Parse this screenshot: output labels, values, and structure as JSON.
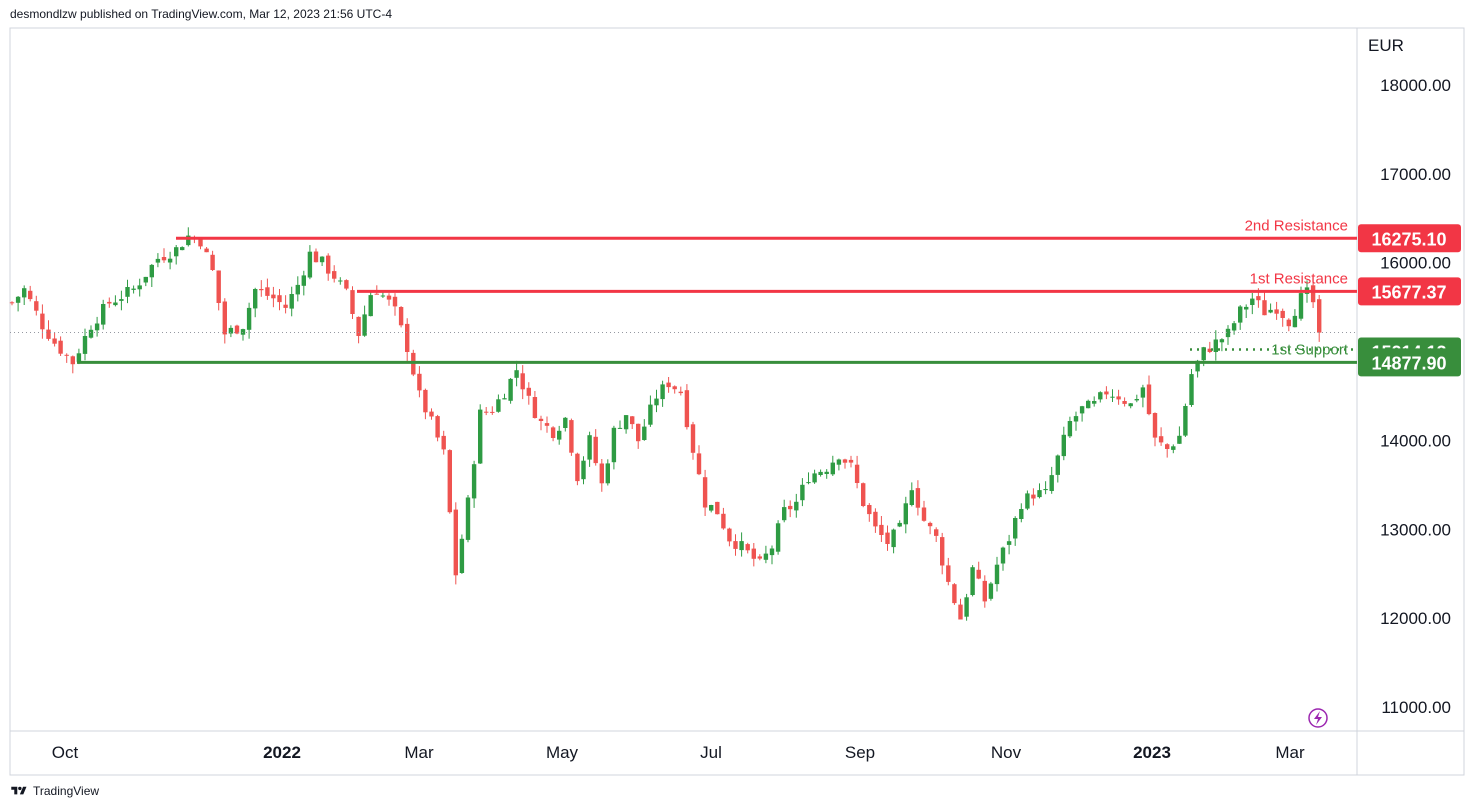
{
  "header": {
    "publisher": "desmondlzw published on TradingView.com, Mar 12, 2023 21:56 UTC-4"
  },
  "footer": {
    "brand": "TradingView"
  },
  "colors": {
    "up": "#26a69a",
    "up_fill": "#2e9b43",
    "down": "#ef5350",
    "resistance": "#f23645",
    "support": "#388e3c"
  },
  "chart_data": {
    "type": "candlestick",
    "currency": "EUR",
    "y_ticks": [
      "18000.00",
      "17000.00",
      "16000.00",
      "14000.00",
      "13000.00",
      "12000.00",
      "11000.00"
    ],
    "ylim": [
      10750,
      18600
    ],
    "x_ticks": [
      {
        "label": "Oct",
        "bold": false
      },
      {
        "label": "2022",
        "bold": true
      },
      {
        "label": "Mar",
        "bold": false
      },
      {
        "label": "May",
        "bold": false
      },
      {
        "label": "Jul",
        "bold": false
      },
      {
        "label": "Sep",
        "bold": false
      },
      {
        "label": "Nov",
        "bold": false
      },
      {
        "label": "2023",
        "bold": true
      },
      {
        "label": "Mar",
        "bold": false
      }
    ],
    "levels": [
      {
        "name": "2nd Resistance",
        "value": 16275.1,
        "badge": "16275.10",
        "kind": "resistance"
      },
      {
        "name": "1st Resistance",
        "value": 15677.37,
        "badge": "15677.37",
        "kind": "resistance"
      },
      {
        "name": "",
        "value": 15214.13,
        "badge": "15214.13",
        "kind": "current"
      },
      {
        "name": "1st Support",
        "value": 14877.9,
        "badge": "14877.90",
        "kind": "support"
      }
    ],
    "price_path": [
      [
        0,
        15550
      ],
      [
        2,
        15700
      ],
      [
        5,
        15300
      ],
      [
        7,
        15100
      ],
      [
        9,
        14950
      ],
      [
        10,
        14880
      ],
      [
        13,
        15300
      ],
      [
        16,
        15550
      ],
      [
        20,
        15700
      ],
      [
        24,
        16050
      ],
      [
        27,
        16150
      ],
      [
        29,
        16300
      ],
      [
        31,
        16250
      ],
      [
        33,
        15900
      ],
      [
        35,
        15200
      ],
      [
        38,
        15300
      ],
      [
        40,
        15700
      ],
      [
        43,
        15600
      ],
      [
        45,
        15500
      ],
      [
        47,
        15750
      ],
      [
        49,
        16100
      ],
      [
        51,
        16000
      ],
      [
        53,
        15850
      ],
      [
        55,
        15650
      ],
      [
        57,
        15200
      ],
      [
        59,
        15650
      ],
      [
        60,
        15700
      ],
      [
        62,
        15550
      ],
      [
        63,
        15450
      ],
      [
        65,
        15050
      ],
      [
        67,
        14500
      ],
      [
        69,
        14200
      ],
      [
        71,
        13850
      ],
      [
        73,
        12500
      ],
      [
        75,
        13300
      ],
      [
        77,
        14300
      ],
      [
        79,
        14350
      ],
      [
        81,
        14550
      ],
      [
        83,
        14800
      ],
      [
        85,
        14450
      ],
      [
        87,
        14200
      ],
      [
        89,
        14100
      ],
      [
        91,
        14250
      ],
      [
        93,
        13600
      ],
      [
        95,
        14000
      ],
      [
        97,
        13500
      ],
      [
        99,
        14100
      ],
      [
        101,
        14300
      ],
      [
        103,
        14000
      ],
      [
        106,
        14500
      ],
      [
        108,
        14650
      ],
      [
        110,
        14550
      ],
      [
        112,
        13900
      ],
      [
        114,
        13300
      ],
      [
        116,
        13200
      ],
      [
        118,
        12900
      ],
      [
        120,
        12800
      ],
      [
        123,
        12600
      ],
      [
        125,
        12800
      ],
      [
        127,
        13200
      ],
      [
        129,
        13300
      ],
      [
        131,
        13600
      ],
      [
        134,
        13700
      ],
      [
        136,
        13850
      ],
      [
        138,
        13700
      ],
      [
        140,
        13300
      ],
      [
        142,
        13000
      ],
      [
        144,
        12850
      ],
      [
        146,
        13000
      ],
      [
        148,
        13500
      ],
      [
        150,
        13100
      ],
      [
        152,
        12900
      ],
      [
        154,
        12400
      ],
      [
        156,
        12000
      ],
      [
        158,
        12550
      ],
      [
        160,
        12200
      ],
      [
        162,
        12600
      ],
      [
        164,
        12900
      ],
      [
        166,
        13300
      ],
      [
        168,
        13400
      ],
      [
        170,
        13400
      ],
      [
        172,
        13800
      ],
      [
        174,
        14200
      ],
      [
        176,
        14350
      ],
      [
        178,
        14400
      ],
      [
        180,
        14550
      ],
      [
        182,
        14500
      ],
      [
        184,
        14400
      ],
      [
        186,
        14600
      ],
      [
        188,
        14000
      ],
      [
        190,
        13900
      ],
      [
        192,
        14050
      ],
      [
        194,
        14750
      ],
      [
        196,
        15000
      ],
      [
        198,
        15100
      ],
      [
        200,
        15200
      ],
      [
        202,
        15450
      ],
      [
        204,
        15600
      ],
      [
        206,
        15450
      ],
      [
        208,
        15500
      ],
      [
        210,
        15350
      ],
      [
        212,
        15600
      ],
      [
        213,
        15650
      ],
      [
        214,
        15550
      ],
      [
        215,
        15214
      ]
    ]
  }
}
